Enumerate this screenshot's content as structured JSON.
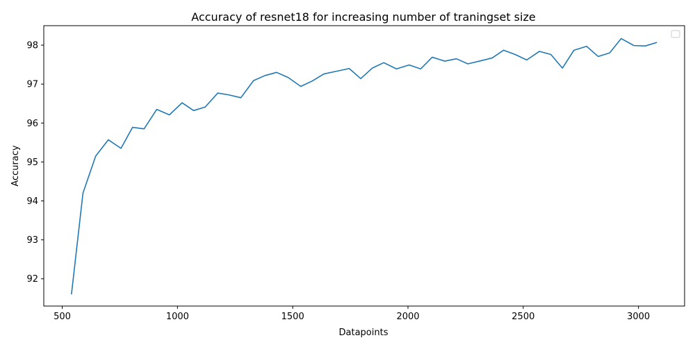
{
  "chart_data": {
    "type": "line",
    "title": "Accuracy of resnet18 for increasing number of traningset size",
    "xlabel": "Datapoints",
    "ylabel": "Accuracy",
    "xlim": [
      420,
      3200
    ],
    "ylim": [
      91.3,
      98.5
    ],
    "xticks": [
      500,
      1000,
      1500,
      2000,
      2500,
      3000
    ],
    "yticks": [
      92,
      93,
      94,
      95,
      96,
      97,
      98
    ],
    "grid": false,
    "legend": "top-right (empty)",
    "series": [
      {
        "color": "#1f77b4",
        "x": [
          540,
          590,
          645,
          700,
          755,
          805,
          855,
          910,
          965,
          1020,
          1070,
          1120,
          1175,
          1225,
          1275,
          1330,
          1380,
          1430,
          1480,
          1535,
          1585,
          1635,
          1690,
          1745,
          1795,
          1845,
          1895,
          1950,
          2005,
          2055,
          2105,
          2160,
          2210,
          2260,
          2310,
          2365,
          2415,
          2465,
          2515,
          2570,
          2620,
          2670,
          2720,
          2775,
          2825,
          2875,
          2925,
          2980,
          3030,
          3080
        ],
        "y": [
          91.6,
          94.2,
          95.15,
          95.57,
          95.35,
          95.89,
          95.85,
          96.35,
          96.21,
          96.52,
          96.32,
          96.41,
          96.77,
          96.72,
          96.65,
          97.09,
          97.22,
          97.3,
          97.17,
          96.94,
          97.08,
          97.26,
          97.33,
          97.4,
          97.14,
          97.41,
          97.55,
          97.39,
          97.49,
          97.39,
          97.69,
          97.59,
          97.65,
          97.52,
          97.59,
          97.67,
          97.87,
          97.76,
          97.62,
          97.84,
          97.76,
          97.41,
          97.87,
          97.97,
          97.71,
          97.8,
          98.17,
          97.99,
          97.98,
          98.07
        ]
      }
    ]
  }
}
